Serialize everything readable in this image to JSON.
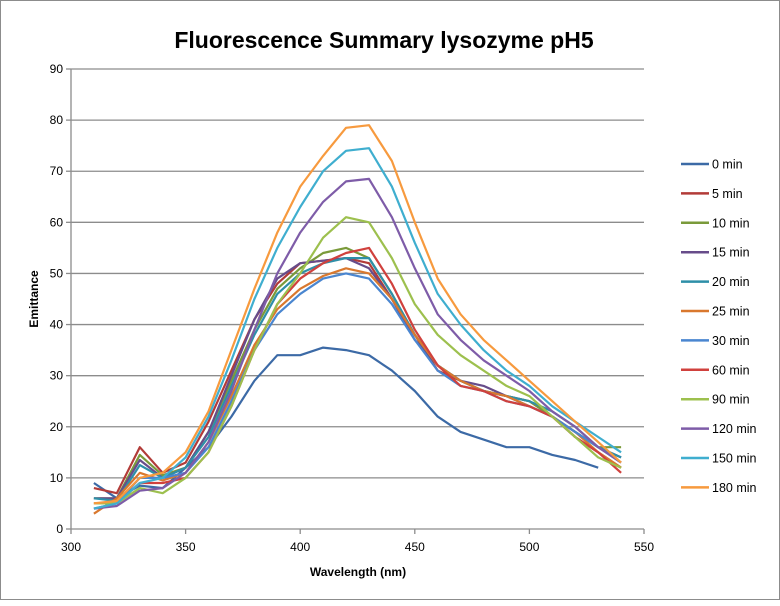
{
  "chart_data": {
    "type": "line",
    "title": "Fluorescence Summary lysozyme pH5",
    "xlabel": "Wavelength (nm)",
    "ylabel": "Emittance",
    "xlim": [
      300,
      550
    ],
    "ylim": [
      0,
      90
    ],
    "xticks": [
      300,
      350,
      400,
      450,
      500,
      550
    ],
    "yticks": [
      0,
      10,
      20,
      30,
      40,
      50,
      60,
      70,
      80,
      90
    ],
    "grid": "horizontal",
    "legend": "right",
    "x": [
      310,
      320,
      330,
      340,
      350,
      360,
      370,
      380,
      390,
      400,
      410,
      420,
      430,
      440,
      450,
      460,
      470,
      480,
      490,
      500,
      510,
      520,
      530,
      540
    ],
    "series": [
      {
        "name": "0 min",
        "color": "#3C6AA6",
        "values": [
          9,
          6,
          8.5,
          8,
          12,
          16,
          22,
          29,
          34,
          34,
          35.5,
          35,
          34,
          31,
          27,
          22,
          19,
          17.5,
          16,
          16,
          14.5,
          13.5,
          12,
          null
        ]
      },
      {
        "name": "5 min",
        "color": "#B23B38",
        "values": [
          8,
          7,
          16,
          11,
          13,
          21,
          31,
          41,
          48,
          52,
          52.5,
          53,
          52,
          45,
          38,
          31,
          29,
          27,
          26,
          25,
          22,
          18,
          15,
          12
        ]
      },
      {
        "name": "10 min",
        "color": "#7A9A3A",
        "values": [
          6,
          6,
          14.5,
          10.5,
          12,
          19,
          29,
          39,
          47,
          51,
          54,
          55,
          53,
          46,
          38,
          32,
          29,
          27,
          26,
          25,
          22,
          19,
          16,
          16
        ]
      },
      {
        "name": "15 min",
        "color": "#674C8A",
        "values": [
          6,
          6,
          13.5,
          10,
          12,
          19,
          30,
          41,
          49,
          52,
          52.5,
          53,
          51,
          45,
          37,
          32,
          29,
          28,
          26,
          24,
          22,
          19,
          16,
          14
        ]
      },
      {
        "name": "20 min",
        "color": "#2E8FA8",
        "values": [
          6,
          5.5,
          12.5,
          10,
          12,
          18,
          28,
          38,
          46,
          50,
          52,
          53,
          53,
          46,
          38,
          32,
          29,
          27,
          26,
          25,
          23,
          20,
          16,
          14
        ]
      },
      {
        "name": "25 min",
        "color": "#D9782E",
        "values": [
          3,
          6,
          11,
          9.5,
          11,
          17,
          26,
          36,
          43,
          47,
          49.5,
          51,
          50,
          45,
          38,
          32,
          29,
          27,
          26,
          24,
          22,
          19,
          15,
          12
        ]
      },
      {
        "name": "30 min",
        "color": "#4A86D0",
        "values": [
          4,
          5,
          10,
          10,
          11,
          16,
          25,
          35,
          42,
          46,
          49,
          50,
          49,
          44,
          37,
          31,
          28,
          27,
          25,
          24,
          22,
          19,
          16,
          13
        ]
      },
      {
        "name": "60 min",
        "color": "#D0413D",
        "values": [
          5,
          5,
          9,
          9,
          10,
          15,
          24,
          35,
          44,
          49,
          52,
          54,
          55,
          48,
          39,
          32,
          28,
          27,
          25,
          24,
          22,
          18,
          15,
          11
        ]
      },
      {
        "name": "90 min",
        "color": "#9DC04E",
        "values": [
          5,
          5,
          8,
          7,
          10,
          15,
          24,
          35,
          44,
          50,
          57,
          61,
          60,
          53,
          44,
          38,
          34,
          31,
          28,
          26,
          22,
          18,
          14,
          12
        ]
      },
      {
        "name": "120 min",
        "color": "#7E5CA8",
        "values": [
          4,
          4.5,
          7.5,
          8,
          11,
          17,
          27,
          39,
          50,
          58,
          64,
          68,
          68.5,
          61,
          51,
          42,
          37,
          33,
          30,
          27,
          23,
          20,
          16,
          13
        ]
      },
      {
        "name": "150 min",
        "color": "#3FAECF",
        "values": [
          4,
          5,
          9,
          10,
          14,
          22,
          33,
          45,
          55,
          63,
          70,
          74,
          74.5,
          67,
          56,
          46,
          40,
          35,
          31,
          28,
          24,
          21,
          18,
          15
        ]
      },
      {
        "name": "180 min",
        "color": "#F79A3E",
        "values": [
          5,
          5.5,
          10,
          11,
          15,
          23,
          35,
          47,
          58,
          67,
          73,
          78.5,
          79,
          72,
          60,
          49,
          42,
          37,
          33,
          29,
          25,
          21,
          17,
          13
        ]
      }
    ]
  }
}
